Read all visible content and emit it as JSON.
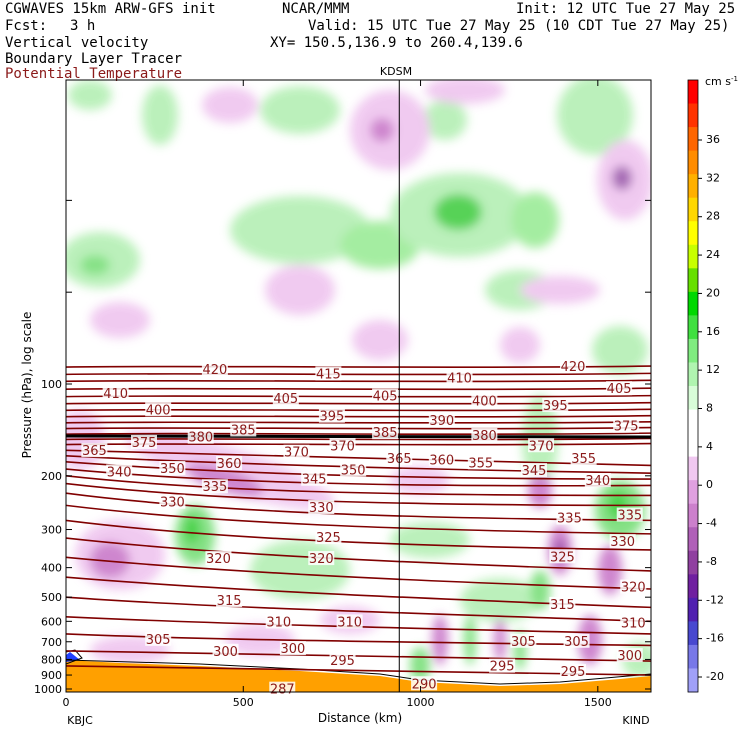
{
  "header": {
    "model": "CGWAVES 15km ARW-GFS init",
    "org": "NCAR/MMM",
    "init": "Init: 12 UTC Tue 27 May 25",
    "fcst_label": "Fcst:",
    "fcst_value": "3 h",
    "valid": "Valid: 15 UTC Tue 27 May 25 (10 CDT Tue 27 May 25)",
    "field1": "Vertical velocity",
    "xy": "XY= 150.5,136.9 to 260.4,139.6",
    "field2": "Boundary Layer Tracer",
    "field3": "Potential Temperature",
    "field3_color": "#8b1a1a"
  },
  "chart_data": {
    "type": "heatmap",
    "xlabel": "Distance (km)",
    "ylabel": "Pressure (hPa), log scale",
    "xlim": [
      0,
      1650
    ],
    "x_ticks": [
      0,
      500,
      1000,
      1500
    ],
    "y_ticks": [
      100,
      200,
      300,
      400,
      500,
      600,
      700,
      800,
      900,
      1000
    ],
    "station_left": "KBJC",
    "station_right": "KIND",
    "station_mid": "KDSM",
    "station_mid_km": 940,
    "colorbar": {
      "unit": "cm s",
      "unit_sup": "-1",
      "ticks": [
        36,
        32,
        28,
        24,
        20,
        16,
        12,
        8,
        4,
        0,
        -4,
        -8,
        -12,
        -16,
        -20
      ],
      "colors": [
        "#ff0000",
        "#ff3300",
        "#ff6600",
        "#ff8c00",
        "#ffb000",
        "#ffd700",
        "#ffff00",
        "#c8ff00",
        "#66e000",
        "#00d800",
        "#40e040",
        "#80ec80",
        "#b0f4b0",
        "#d8fcd8",
        "#ffffff",
        "#ffffff",
        "#f0c8f0",
        "#e0a0e0",
        "#cc80cc",
        "#b060b8",
        "#9040a0",
        "#7020a0",
        "#5020b0",
        "#4848d0",
        "#7878e8",
        "#a0a0f8"
      ]
    },
    "theta_labels": [
      {
        "v": "420",
        "x": 420,
        "p": 90
      },
      {
        "v": "415",
        "x": 740,
        "p": 93
      },
      {
        "v": "410",
        "x": 1110,
        "p": 96
      },
      {
        "v": "420",
        "x": 1430,
        "p": 88
      },
      {
        "v": "410",
        "x": 140,
        "p": 108
      },
      {
        "v": "400",
        "x": 260,
        "p": 122
      },
      {
        "v": "405",
        "x": 620,
        "p": 112
      },
      {
        "v": "405",
        "x": 900,
        "p": 110
      },
      {
        "v": "400",
        "x": 1180,
        "p": 114
      },
      {
        "v": "395",
        "x": 1380,
        "p": 118
      },
      {
        "v": "405",
        "x": 1560,
        "p": 104
      },
      {
        "v": "395",
        "x": 750,
        "p": 128
      },
      {
        "v": "390",
        "x": 1060,
        "p": 132
      },
      {
        "v": "385",
        "x": 500,
        "p": 142
      },
      {
        "v": "385",
        "x": 900,
        "p": 145
      },
      {
        "v": "380",
        "x": 380,
        "p": 150
      },
      {
        "v": "380",
        "x": 1180,
        "p": 148
      },
      {
        "v": "375",
        "x": 1580,
        "p": 138
      },
      {
        "v": "375",
        "x": 220,
        "p": 156
      },
      {
        "v": "370",
        "x": 650,
        "p": 168
      },
      {
        "v": "370",
        "x": 780,
        "p": 160
      },
      {
        "v": "370",
        "x": 1340,
        "p": 160
      },
      {
        "v": "365",
        "x": 80,
        "p": 166
      },
      {
        "v": "365",
        "x": 940,
        "p": 176
      },
      {
        "v": "360",
        "x": 460,
        "p": 183
      },
      {
        "v": "360",
        "x": 1060,
        "p": 178
      },
      {
        "v": "355",
        "x": 1170,
        "p": 182
      },
      {
        "v": "355",
        "x": 1460,
        "p": 176
      },
      {
        "v": "350",
        "x": 300,
        "p": 190
      },
      {
        "v": "350",
        "x": 810,
        "p": 192
      },
      {
        "v": "345",
        "x": 700,
        "p": 206
      },
      {
        "v": "345",
        "x": 1320,
        "p": 193
      },
      {
        "v": "340",
        "x": 150,
        "p": 195
      },
      {
        "v": "340",
        "x": 1500,
        "p": 208
      },
      {
        "v": "335",
        "x": 420,
        "p": 218
      },
      {
        "v": "335",
        "x": 1420,
        "p": 276
      },
      {
        "v": "335",
        "x": 1590,
        "p": 270
      },
      {
        "v": "330",
        "x": 300,
        "p": 245
      },
      {
        "v": "330",
        "x": 720,
        "p": 255
      },
      {
        "v": "330",
        "x": 1570,
        "p": 330
      },
      {
        "v": "325",
        "x": 740,
        "p": 320
      },
      {
        "v": "325",
        "x": 1400,
        "p": 370
      },
      {
        "v": "320",
        "x": 430,
        "p": 375
      },
      {
        "v": "320",
        "x": 720,
        "p": 375
      },
      {
        "v": "320",
        "x": 1600,
        "p": 465
      },
      {
        "v": "315",
        "x": 460,
        "p": 515
      },
      {
        "v": "315",
        "x": 1400,
        "p": 530
      },
      {
        "v": "310",
        "x": 600,
        "p": 605
      },
      {
        "v": "310",
        "x": 800,
        "p": 605
      },
      {
        "v": "310",
        "x": 1600,
        "p": 610
      },
      {
        "v": "305",
        "x": 260,
        "p": 690
      },
      {
        "v": "305",
        "x": 1290,
        "p": 700
      },
      {
        "v": "305",
        "x": 1440,
        "p": 700
      },
      {
        "v": "300",
        "x": 450,
        "p": 755
      },
      {
        "v": "300",
        "x": 640,
        "p": 740
      },
      {
        "v": "300",
        "x": 1590,
        "p": 780
      },
      {
        "v": "295",
        "x": 780,
        "p": 810
      },
      {
        "v": "295",
        "x": 1230,
        "p": 845
      },
      {
        "v": "295",
        "x": 1430,
        "p": 880
      },
      {
        "v": "287",
        "x": 610,
        "p": 1005
      },
      {
        "v": "290",
        "x": 1010,
        "p": 965
      }
    ]
  }
}
